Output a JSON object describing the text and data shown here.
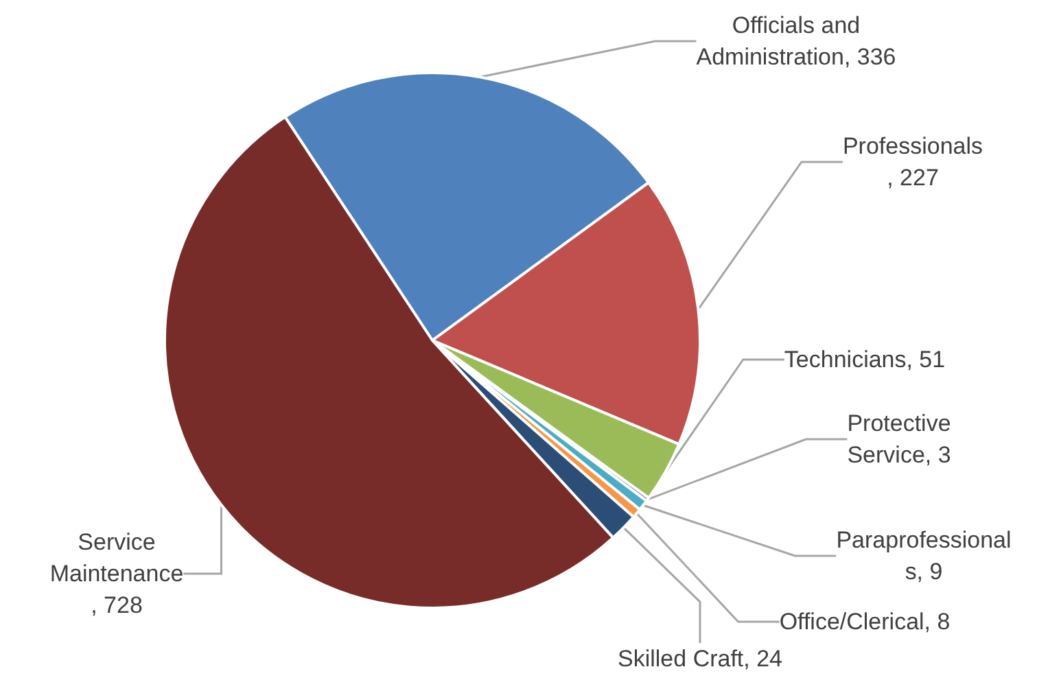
{
  "chart_data": {
    "type": "pie",
    "categories": [
      "Officials and Administration",
      "Professionals",
      "Technicians",
      "Protective Service",
      "Paraprofessionals",
      "Office/Clerical",
      "Skilled Craft",
      "Service Maintenance"
    ],
    "values": [
      336,
      227,
      51,
      3,
      9,
      8,
      24,
      728
    ],
    "value_labels": [
      ", 336",
      ", 227",
      ", 51",
      ", 3",
      ", 9",
      ", 8",
      ", 24",
      ", 728"
    ],
    "colors": [
      "#4f81bd",
      "#c0504d",
      "#9bbb59",
      "#8064a2",
      "#4bacc6",
      "#f79646",
      "#2c4d75",
      "#772c2a"
    ],
    "legend": false
  }
}
